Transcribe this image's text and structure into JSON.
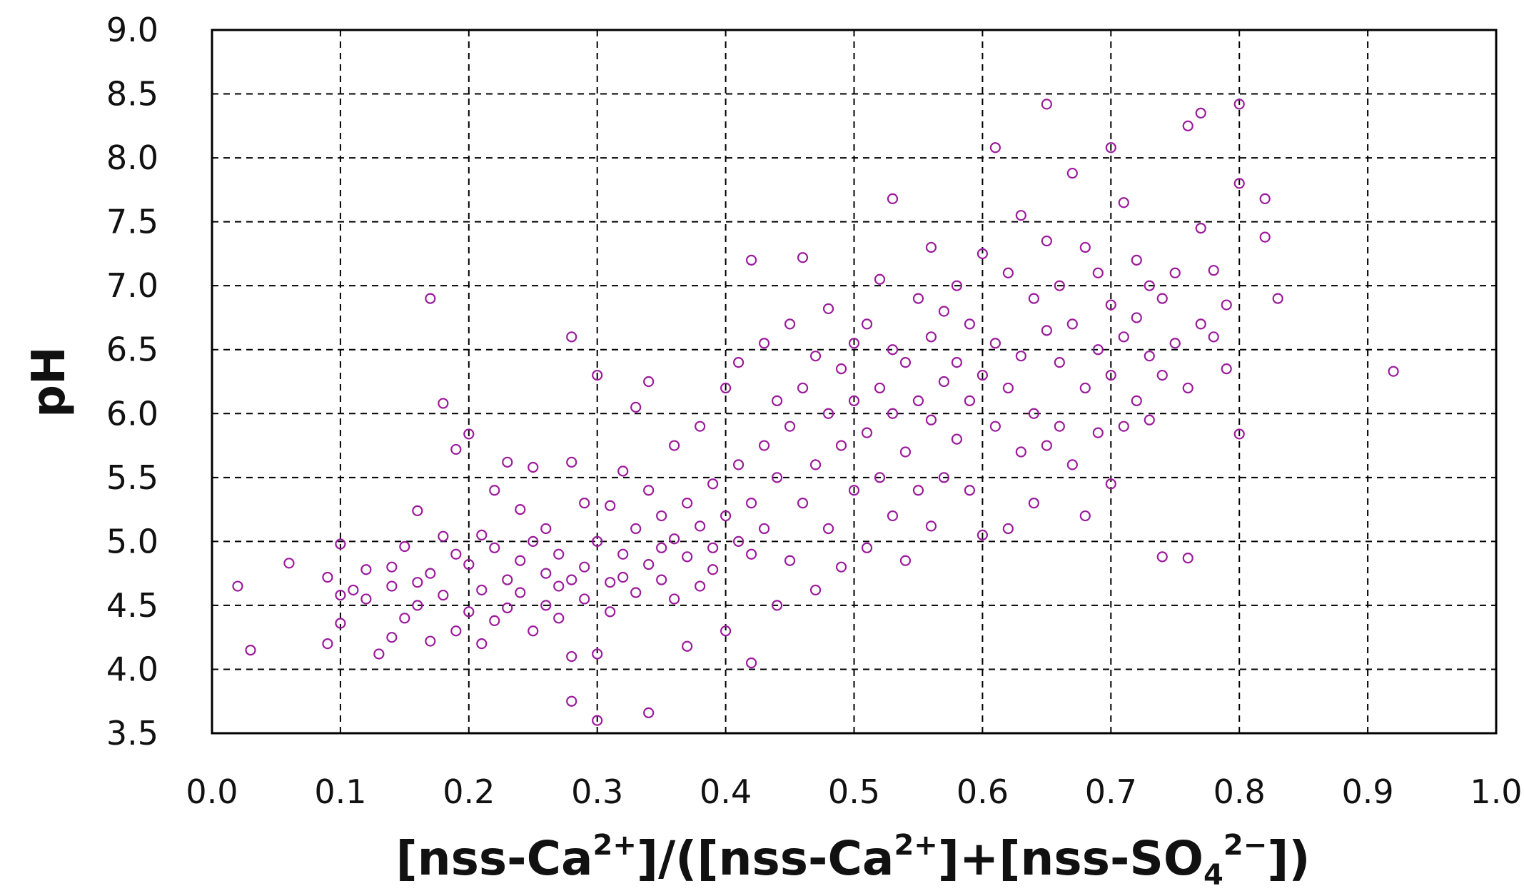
{
  "chart_data": {
    "type": "scatter",
    "title": "",
    "xlabel": {
      "parts": [
        "[nss-Ca",
        "2+",
        "]/([nss-Ca",
        "2+",
        "]+[nss-SO",
        "4",
        "2−",
        "])"
      ]
    },
    "ylabel": "pH",
    "xlim": [
      0.0,
      1.0
    ],
    "ylim": [
      3.5,
      9.0
    ],
    "x_ticks": [
      "0.0",
      "0.1",
      "0.2",
      "0.3",
      "0.4",
      "0.5",
      "0.6",
      "0.7",
      "0.8",
      "0.9",
      "1.0"
    ],
    "y_ticks": [
      "3.5",
      "4.0",
      "4.5",
      "5.0",
      "5.5",
      "6.0",
      "6.5",
      "7.0",
      "7.5",
      "8.0",
      "8.5",
      "9.0"
    ],
    "grid": true,
    "marker": "open-circle",
    "color": "#9b1b9b",
    "points": [
      [
        0.02,
        4.65
      ],
      [
        0.03,
        4.15
      ],
      [
        0.06,
        4.83
      ],
      [
        0.09,
        4.2
      ],
      [
        0.09,
        4.72
      ],
      [
        0.1,
        4.58
      ],
      [
        0.1,
        4.98
      ],
      [
        0.1,
        4.36
      ],
      [
        0.11,
        4.62
      ],
      [
        0.12,
        4.55
      ],
      [
        0.12,
        4.78
      ],
      [
        0.13,
        4.12
      ],
      [
        0.14,
        4.8
      ],
      [
        0.14,
        4.65
      ],
      [
        0.14,
        4.25
      ],
      [
        0.15,
        4.4
      ],
      [
        0.15,
        4.96
      ],
      [
        0.16,
        4.68
      ],
      [
        0.16,
        5.24
      ],
      [
        0.16,
        4.5
      ],
      [
        0.17,
        4.22
      ],
      [
        0.17,
        6.9
      ],
      [
        0.17,
        4.75
      ],
      [
        0.18,
        5.04
      ],
      [
        0.18,
        4.58
      ],
      [
        0.18,
        6.08
      ],
      [
        0.19,
        4.3
      ],
      [
        0.19,
        4.9
      ],
      [
        0.19,
        5.72
      ],
      [
        0.2,
        4.45
      ],
      [
        0.2,
        4.82
      ],
      [
        0.2,
        5.84
      ],
      [
        0.21,
        4.2
      ],
      [
        0.21,
        5.05
      ],
      [
        0.21,
        4.62
      ],
      [
        0.22,
        4.38
      ],
      [
        0.22,
        5.4
      ],
      [
        0.22,
        4.95
      ],
      [
        0.23,
        5.62
      ],
      [
        0.23,
        4.7
      ],
      [
        0.23,
        4.48
      ],
      [
        0.24,
        5.25
      ],
      [
        0.24,
        4.85
      ],
      [
        0.24,
        4.6
      ],
      [
        0.25,
        5.58
      ],
      [
        0.25,
        4.3
      ],
      [
        0.25,
        5.0
      ],
      [
        0.26,
        4.75
      ],
      [
        0.26,
        4.5
      ],
      [
        0.26,
        5.1
      ],
      [
        0.27,
        4.65
      ],
      [
        0.27,
        4.9
      ],
      [
        0.27,
        4.4
      ],
      [
        0.28,
        3.75
      ],
      [
        0.28,
        4.1
      ],
      [
        0.28,
        4.7
      ],
      [
        0.28,
        5.62
      ],
      [
        0.28,
        6.6
      ],
      [
        0.29,
        4.8
      ],
      [
        0.29,
        5.3
      ],
      [
        0.29,
        4.55
      ],
      [
        0.3,
        4.12
      ],
      [
        0.3,
        5.0
      ],
      [
        0.3,
        3.6
      ],
      [
        0.3,
        6.3
      ],
      [
        0.31,
        4.68
      ],
      [
        0.31,
        5.28
      ],
      [
        0.31,
        4.45
      ],
      [
        0.32,
        4.9
      ],
      [
        0.32,
        5.55
      ],
      [
        0.32,
        4.72
      ],
      [
        0.33,
        5.1
      ],
      [
        0.33,
        4.6
      ],
      [
        0.33,
        6.05
      ],
      [
        0.34,
        3.66
      ],
      [
        0.34,
        4.82
      ],
      [
        0.34,
        5.4
      ],
      [
        0.34,
        6.25
      ],
      [
        0.35,
        4.95
      ],
      [
        0.35,
        5.2
      ],
      [
        0.35,
        4.7
      ],
      [
        0.36,
        5.02
      ],
      [
        0.36,
        5.75
      ],
      [
        0.36,
        4.55
      ],
      [
        0.37,
        4.18
      ],
      [
        0.37,
        4.88
      ],
      [
        0.37,
        5.3
      ],
      [
        0.38,
        5.12
      ],
      [
        0.38,
        4.65
      ],
      [
        0.38,
        5.9
      ],
      [
        0.39,
        4.95
      ],
      [
        0.39,
        5.45
      ],
      [
        0.39,
        4.78
      ],
      [
        0.4,
        5.2
      ],
      [
        0.4,
        4.3
      ],
      [
        0.4,
        6.2
      ],
      [
        0.41,
        5.0
      ],
      [
        0.41,
        5.6
      ],
      [
        0.41,
        6.4
      ],
      [
        0.42,
        4.05
      ],
      [
        0.42,
        5.3
      ],
      [
        0.42,
        4.9
      ],
      [
        0.42,
        7.2
      ],
      [
        0.43,
        5.1
      ],
      [
        0.43,
        5.75
      ],
      [
        0.43,
        6.55
      ],
      [
        0.44,
        4.5
      ],
      [
        0.44,
        5.5
      ],
      [
        0.44,
        6.1
      ],
      [
        0.45,
        4.85
      ],
      [
        0.45,
        5.9
      ],
      [
        0.45,
        6.7
      ],
      [
        0.46,
        5.3
      ],
      [
        0.46,
        6.2
      ],
      [
        0.46,
        7.22
      ],
      [
        0.47,
        4.62
      ],
      [
        0.47,
        5.6
      ],
      [
        0.47,
        6.45
      ],
      [
        0.48,
        5.1
      ],
      [
        0.48,
        6.0
      ],
      [
        0.48,
        6.82
      ],
      [
        0.49,
        4.8
      ],
      [
        0.49,
        5.75
      ],
      [
        0.49,
        6.35
      ],
      [
        0.5,
        5.4
      ],
      [
        0.5,
        6.1
      ],
      [
        0.5,
        6.55
      ],
      [
        0.51,
        4.95
      ],
      [
        0.51,
        5.85
      ],
      [
        0.51,
        6.7
      ],
      [
        0.52,
        5.5
      ],
      [
        0.52,
        6.2
      ],
      [
        0.52,
        7.05
      ],
      [
        0.53,
        5.2
      ],
      [
        0.53,
        6.0
      ],
      [
        0.53,
        6.5
      ],
      [
        0.53,
        7.68
      ],
      [
        0.54,
        4.85
      ],
      [
        0.54,
        5.7
      ],
      [
        0.54,
        6.4
      ],
      [
        0.55,
        5.4
      ],
      [
        0.55,
        6.1
      ],
      [
        0.55,
        6.9
      ],
      [
        0.56,
        5.12
      ],
      [
        0.56,
        5.95
      ],
      [
        0.56,
        6.6
      ],
      [
        0.56,
        7.3
      ],
      [
        0.57,
        5.5
      ],
      [
        0.57,
        6.25
      ],
      [
        0.57,
        6.8
      ],
      [
        0.58,
        5.8
      ],
      [
        0.58,
        6.4
      ],
      [
        0.58,
        7.0
      ],
      [
        0.59,
        5.4
      ],
      [
        0.59,
        6.1
      ],
      [
        0.59,
        6.7
      ],
      [
        0.6,
        5.05
      ],
      [
        0.6,
        6.3
      ],
      [
        0.6,
        7.25
      ],
      [
        0.61,
        5.9
      ],
      [
        0.61,
        6.55
      ],
      [
        0.61,
        8.08
      ],
      [
        0.62,
        5.1
      ],
      [
        0.62,
        6.2
      ],
      [
        0.62,
        7.1
      ],
      [
        0.63,
        5.7
      ],
      [
        0.63,
        6.45
      ],
      [
        0.63,
        7.55
      ],
      [
        0.64,
        5.3
      ],
      [
        0.64,
        6.0
      ],
      [
        0.64,
        6.9
      ],
      [
        0.65,
        5.75
      ],
      [
        0.65,
        6.65
      ],
      [
        0.65,
        7.35
      ],
      [
        0.65,
        8.42
      ],
      [
        0.66,
        5.9
      ],
      [
        0.66,
        6.4
      ],
      [
        0.66,
        7.0
      ],
      [
        0.67,
        5.6
      ],
      [
        0.67,
        6.7
      ],
      [
        0.67,
        7.88
      ],
      [
        0.68,
        5.2
      ],
      [
        0.68,
        6.2
      ],
      [
        0.68,
        7.3
      ],
      [
        0.69,
        5.85
      ],
      [
        0.69,
        6.5
      ],
      [
        0.69,
        7.1
      ],
      [
        0.7,
        5.45
      ],
      [
        0.7,
        6.3
      ],
      [
        0.7,
        6.85
      ],
      [
        0.7,
        8.08
      ],
      [
        0.71,
        5.9
      ],
      [
        0.71,
        6.6
      ],
      [
        0.71,
        7.65
      ],
      [
        0.72,
        6.1
      ],
      [
        0.72,
        6.75
      ],
      [
        0.72,
        7.2
      ],
      [
        0.73,
        5.95
      ],
      [
        0.73,
        6.45
      ],
      [
        0.73,
        7.0
      ],
      [
        0.74,
        4.88
      ],
      [
        0.74,
        6.3
      ],
      [
        0.74,
        6.9
      ],
      [
        0.75,
        6.55
      ],
      [
        0.75,
        7.1
      ],
      [
        0.76,
        4.87
      ],
      [
        0.76,
        6.2
      ],
      [
        0.76,
        8.25
      ],
      [
        0.77,
        6.7
      ],
      [
        0.77,
        7.45
      ],
      [
        0.77,
        8.35
      ],
      [
        0.78,
        6.6
      ],
      [
        0.78,
        7.12
      ],
      [
        0.79,
        6.35
      ],
      [
        0.79,
        6.85
      ],
      [
        0.8,
        5.84
      ],
      [
        0.8,
        7.8
      ],
      [
        0.8,
        8.42
      ],
      [
        0.82,
        7.38
      ],
      [
        0.82,
        7.68
      ],
      [
        0.83,
        6.9
      ],
      [
        0.92,
        6.33
      ]
    ]
  }
}
